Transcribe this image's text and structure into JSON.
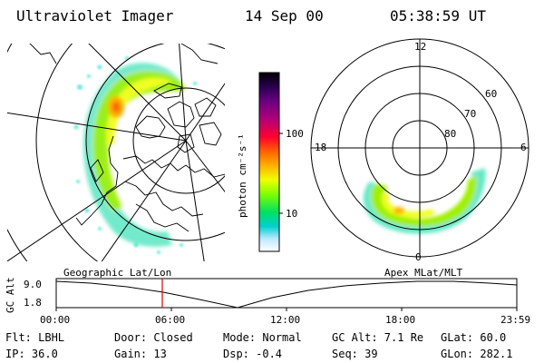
{
  "header": {
    "instrument": "Ultraviolet Imager",
    "date": "14 Sep 00",
    "time": "05:38:59 UT"
  },
  "colorbar": {
    "unit_label": "photon cm⁻²s⁻¹",
    "ticks": [
      "100",
      "10"
    ],
    "colors": [
      "#000000",
      "#2a0050",
      "#6a0080",
      "#b0007a",
      "#ff0030",
      "#ff6000",
      "#ffb000",
      "#f0ff00",
      "#80ff00",
      "#00e060",
      "#00d0d0",
      "#bfe8ff",
      "#ffffff"
    ]
  },
  "left_map": {
    "caption": "Geographic Lat/Lon",
    "projection": "geographic"
  },
  "right_dial": {
    "caption": "Apex MLat/MLT",
    "mlt_labels": {
      "top": "12",
      "left": "18",
      "right": "6",
      "bottom": "0"
    },
    "mlat_labels": [
      "60",
      "70",
      "80"
    ]
  },
  "altitude_plot": {
    "axis_title": "GC Alt",
    "y_ticks": [
      "9.0",
      "1.8"
    ],
    "x_ticks": [
      "00:00",
      "06:00",
      "12:00",
      "18:00",
      "23:59"
    ],
    "cursor_time": "05:38:59"
  },
  "info": {
    "row1": [
      "Flt: LBHL",
      "Door: Closed",
      "Mode: Normal",
      "GC Alt: 7.1 Re",
      "GLat:  60.0"
    ],
    "row2": [
      "IP: 36.0",
      "Gain: 13",
      "Dsp:  -0.4",
      "Seq: 39",
      "GLon: 282.1"
    ]
  }
}
